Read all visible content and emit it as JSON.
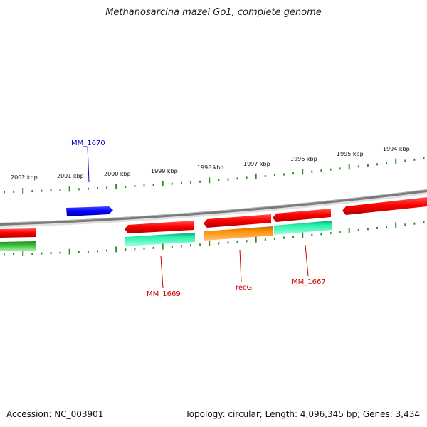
{
  "title": "Methanosarcina mazei Go1, complete genome",
  "footer": {
    "accession": "Accession: NC_003901",
    "summary": "Topology: circular; Length: 4,096,345 bp; Genes: 3,434"
  },
  "colors": {
    "backbone": "#8a8a8a",
    "ticks": "#2e8b22",
    "forward_gene": "#ff0000",
    "reverse_gene": "#22e0a0",
    "blue_gene": "#0000ff",
    "orange_gene": "#ff8c00",
    "green_gene": "#33bb33"
  },
  "ruler": {
    "labels": [
      "2002 kbp",
      "2001 kbp",
      "2000 kbp",
      "1999 kbp",
      "1998 kbp",
      "1997 kbp",
      "1996 kbp",
      "1995 kbp",
      "1994 kbp"
    ]
  },
  "genes": {
    "labeled": [
      {
        "name": "MM_1670",
        "color": "#0000cc"
      },
      {
        "name": "MM_1669",
        "color": "#cc0000"
      },
      {
        "name": "recG",
        "color": "#cc0000"
      },
      {
        "name": "MM_1667",
        "color": "#cc0000"
      }
    ]
  }
}
